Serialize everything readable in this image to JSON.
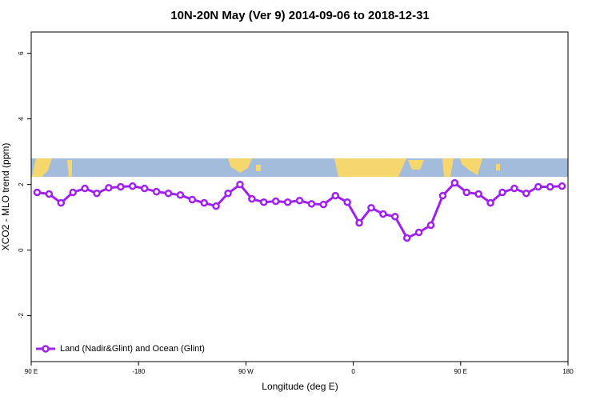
{
  "chart_data": {
    "type": "line",
    "title": "10N-20N May (Ver 9)   2014-09-06 to 2018-12-31",
    "xlabel": "Longitude (deg E)",
    "ylabel": "XCO2 - MLO trend (ppm)",
    "x": [
      -265,
      -255,
      -245,
      -235,
      -225,
      -215,
      -205,
      -195,
      -185,
      -175,
      -165,
      -155,
      -145,
      -135,
      -125,
      -115,
      -105,
      -95,
      -85,
      -75,
      -65,
      -55,
      -45,
      -35,
      -25,
      -15,
      -5,
      5,
      15,
      25,
      35,
      45,
      55,
      65,
      75,
      85,
      95,
      105,
      115,
      125,
      135,
      145,
      155,
      165,
      175
    ],
    "series": [
      {
        "name": "Land (Nadir&Glint) and Ocean (Glint)",
        "color": "#a020f0",
        "values": [
          1.76,
          1.71,
          1.44,
          1.76,
          1.88,
          1.73,
          1.9,
          1.93,
          1.95,
          1.88,
          1.78,
          1.73,
          1.68,
          1.54,
          1.44,
          1.34,
          1.73,
          2.0,
          1.56,
          1.46,
          1.49,
          1.46,
          1.51,
          1.41,
          1.39,
          1.66,
          1.46,
          0.83,
          1.29,
          1.1,
          1.02,
          0.37,
          0.54,
          0.76,
          1.66,
          2.05,
          1.76,
          1.71,
          1.44,
          1.76,
          1.88,
          1.73,
          1.93,
          1.93,
          1.95
        ]
      }
    ],
    "xlim": [
      -270,
      180
    ],
    "xticks": [
      {
        "value": -270,
        "label": "90 E"
      },
      -180,
      {
        "value": -90,
        "label": "90 W"
      },
      0,
      {
        "value": 90,
        "label": "90 E"
      },
      180
    ],
    "ylim": [
      -3.4,
      6.65
    ],
    "yticks": [
      -2,
      0,
      2,
      4,
      6
    ],
    "legend": "bottom-left"
  }
}
